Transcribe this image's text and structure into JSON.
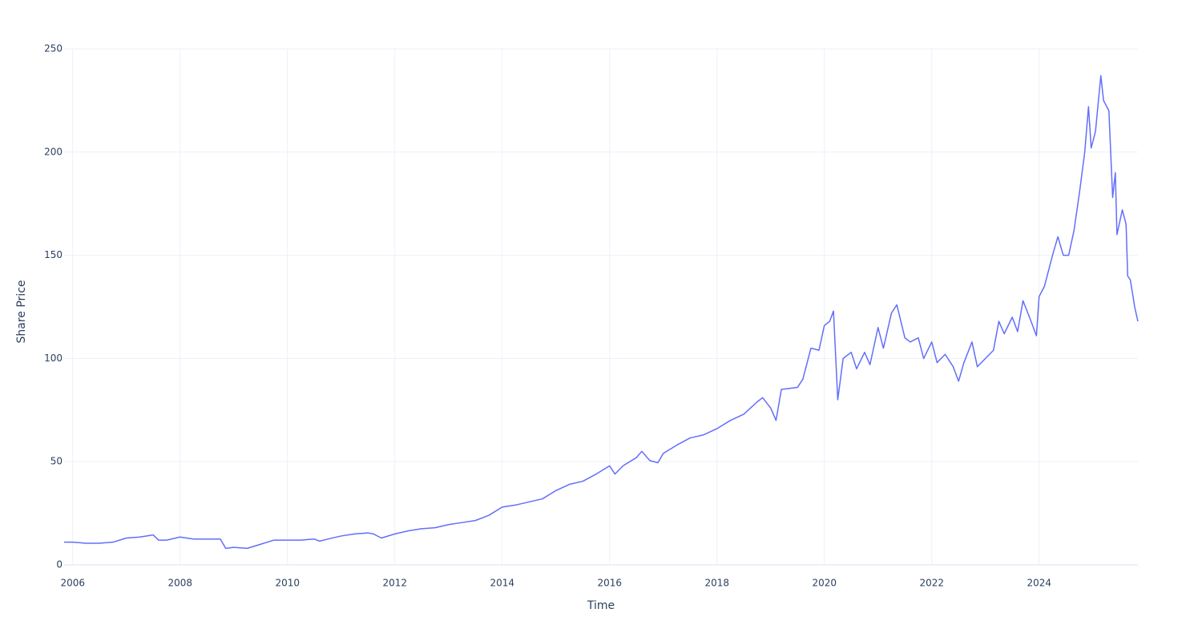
{
  "chart_data": {
    "type": "line",
    "xlabel": "Time",
    "ylabel": "Share Price",
    "color": "#636efa",
    "grid": true,
    "xlim": [
      2005.84,
      2025.84
    ],
    "xticks": [
      2006,
      2008,
      2010,
      2012,
      2014,
      2016,
      2018,
      2020,
      2022,
      2024
    ],
    "ylim": [
      0,
      250
    ],
    "yticks": [
      0,
      50,
      100,
      150,
      200,
      250
    ],
    "x": [
      2005.84,
      2006.0,
      2006.25,
      2006.5,
      2006.75,
      2007.0,
      2007.25,
      2007.5,
      2007.6,
      2007.75,
      2008.0,
      2008.25,
      2008.5,
      2008.75,
      2008.85,
      2009.0,
      2009.25,
      2009.5,
      2009.75,
      2010.0,
      2010.25,
      2010.5,
      2010.6,
      2010.75,
      2011.0,
      2011.25,
      2011.5,
      2011.6,
      2011.75,
      2012.0,
      2012.25,
      2012.5,
      2012.75,
      2013.0,
      2013.25,
      2013.5,
      2013.75,
      2014.0,
      2014.25,
      2014.5,
      2014.75,
      2015.0,
      2015.25,
      2015.5,
      2015.75,
      2016.0,
      2016.1,
      2016.25,
      2016.5,
      2016.6,
      2016.75,
      2016.9,
      2017.0,
      2017.25,
      2017.5,
      2017.75,
      2018.0,
      2018.25,
      2018.5,
      2018.75,
      2018.85,
      2019.0,
      2019.1,
      2019.2,
      2019.5,
      2019.6,
      2019.75,
      2019.9,
      2020.0,
      2020.1,
      2020.17,
      2020.25,
      2020.35,
      2020.5,
      2020.6,
      2020.75,
      2020.85,
      2021.0,
      2021.1,
      2021.25,
      2021.35,
      2021.5,
      2021.6,
      2021.75,
      2021.85,
      2022.0,
      2022.1,
      2022.25,
      2022.4,
      2022.5,
      2022.6,
      2022.75,
      2022.85,
      2023.0,
      2023.15,
      2023.25,
      2023.35,
      2023.5,
      2023.6,
      2023.7,
      2023.85,
      2023.95,
      2024.0,
      2024.1,
      2024.25,
      2024.35,
      2024.45,
      2024.55,
      2024.65,
      2024.75,
      2024.85,
      2024.92,
      2024.97,
      2025.05,
      2025.15,
      2025.2,
      2025.3,
      2025.37,
      2025.42,
      2025.45,
      2025.55,
      2025.62,
      2025.65,
      2025.7,
      2025.78,
      2025.84
    ],
    "values": [
      11,
      11,
      10.5,
      10.5,
      11,
      13,
      13.5,
      14.5,
      12,
      12,
      13.5,
      12.5,
      12.5,
      12.5,
      8,
      8.5,
      8,
      10,
      12,
      12,
      12,
      12.5,
      11.5,
      12.5,
      14,
      15,
      15.5,
      15,
      13,
      15,
      16.5,
      17.5,
      18,
      19.5,
      20.5,
      21.5,
      24,
      28,
      29,
      30.5,
      32,
      36,
      39,
      40.5,
      44,
      48,
      44,
      48,
      52,
      55,
      50.5,
      49.5,
      54,
      58,
      61.5,
      63,
      66,
      70,
      73,
      79,
      81,
      76,
      70,
      85,
      86,
      90,
      105,
      104,
      116,
      118,
      123,
      80,
      100,
      103,
      95,
      103,
      97,
      115,
      105,
      122,
      126,
      110,
      108,
      110,
      100,
      108,
      98,
      102,
      96,
      89,
      98,
      108,
      96,
      100,
      104,
      118,
      112,
      120,
      113,
      128,
      118,
      111,
      130,
      135,
      150,
      159,
      150,
      150,
      162,
      180,
      200,
      222,
      202,
      210,
      237,
      225,
      220,
      178,
      190,
      160,
      172,
      165,
      140,
      138,
      125,
      118
    ]
  }
}
